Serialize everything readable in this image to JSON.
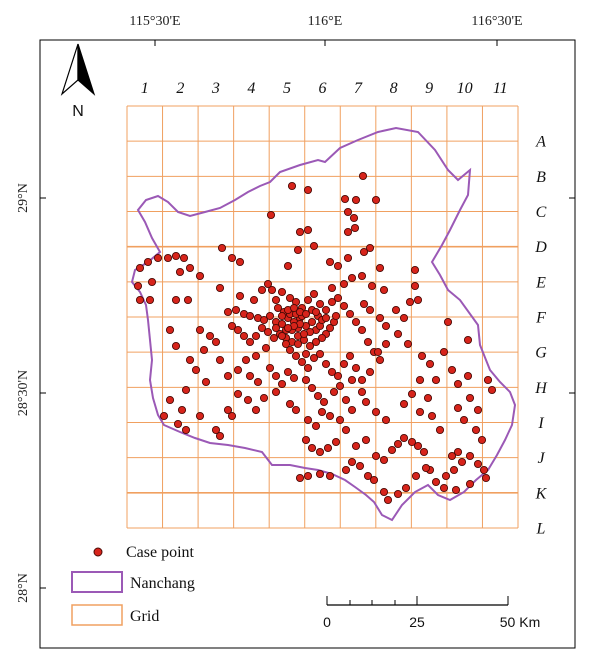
{
  "map": {
    "lon_labels": [
      "115°30'E",
      "116°E",
      "116°30'E"
    ],
    "lat_labels": [
      "29°N",
      "28°30'N",
      "28°N"
    ],
    "grid_columns": [
      "1",
      "2",
      "3",
      "4",
      "5",
      "6",
      "7",
      "8",
      "9",
      "10",
      "11"
    ],
    "grid_rows": [
      "A",
      "B",
      "C",
      "D",
      "E",
      "F",
      "G",
      "H",
      "I",
      "J",
      "K",
      "L"
    ],
    "north_label": "N",
    "legend": {
      "case_point": "Case point",
      "boundary": "Nanchang",
      "grid": "Grid"
    },
    "scale": {
      "ticks": [
        "0",
        "25",
        "50 Km"
      ]
    },
    "colors": {
      "grid": "#f0a060",
      "boundary": "#9b59b6",
      "point_fill": "#d7241b",
      "point_stroke": "#4a0a06",
      "frame": "#000000"
    },
    "icons": {
      "north_arrow": "north-arrow-icon"
    }
  }
}
